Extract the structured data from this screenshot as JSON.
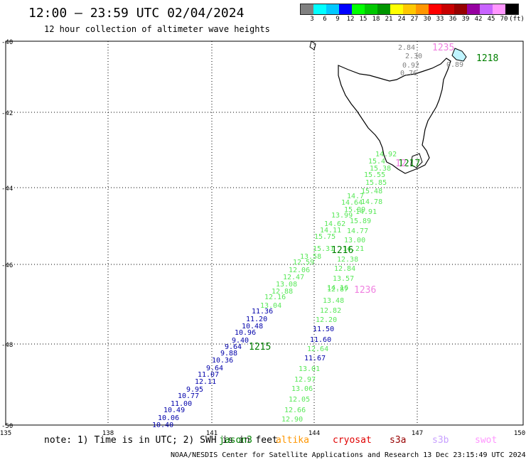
{
  "title": "12:00 – 23:59 UTC 02/04/2024",
  "subtitle": "12 hour collection of altimeter wave heights",
  "colorbar": {
    "colors": [
      "#808080",
      "#00ffff",
      "#00c8ff",
      "#0000ff",
      "#00ff00",
      "#00c800",
      "#009600",
      "#ffff00",
      "#ffc800",
      "#ff9600",
      "#ff0000",
      "#c80000",
      "#960000",
      "#9600a0",
      "#c864ff",
      "#ff96ff",
      "#000000"
    ],
    "labels": [
      "3",
      "6",
      "9",
      "12",
      "15",
      "18",
      "21",
      "24",
      "27",
      "30",
      "33",
      "36",
      "39",
      "42",
      "45",
      "70",
      "(ft)"
    ]
  },
  "axes": {
    "lat_ticks": [
      "-40",
      "-42",
      "-44",
      "-46",
      "-48",
      "-50"
    ],
    "lon_ticks": [
      "135",
      "138",
      "141",
      "144",
      "147",
      "150"
    ]
  },
  "tracks": {
    "colors": {
      "blue": "#0000aa",
      "green": "#58e858",
      "gray": "#808080",
      "pink": "#f080e0",
      "darkgreen": "#008000"
    },
    "gray_labels": [
      "2.84",
      "2.30",
      "0.92",
      "0.76",
      "0.89"
    ],
    "track_a_green": [
      "14.92",
      "15.4",
      "15.38",
      "15.55",
      "15.85",
      "15.48",
      "14.7",
      "14.78",
      "14.64",
      "15.09",
      "14.91",
      "13.99",
      "15.89",
      "14.62",
      "14.77",
      "14.11",
      "13.00",
      "15.75",
      "15.31",
      "14.21",
      "13.58",
      "12.38",
      "12.59",
      "12.84",
      "12.06",
      "13.57",
      "12.47",
      "14.16",
      "13.08",
      "12.87",
      "12.88",
      "12.16",
      "13.04"
    ],
    "track_a_blue": [
      "11.36",
      "11.20",
      "10.48",
      "10.96",
      "9.40",
      "9.64",
      "9.88",
      "10.36",
      "9.64",
      "11.07",
      "12.11",
      "9.95",
      "10.77",
      "11.00",
      "10.49",
      "10.06",
      "10.40"
    ],
    "track_b": [
      "13.48",
      "12.82",
      "12.20",
      "11.50",
      "11.60",
      "12.64",
      "11.67",
      "13.01",
      "12.97",
      "13.06",
      "12.05",
      "12.66",
      "12.90"
    ],
    "times": [
      "1235",
      "1218",
      "1217",
      "1216",
      "1236",
      "1215"
    ]
  },
  "note": "note: 1) Time is in UTC; 2) SWH is in feet",
  "legend": [
    {
      "name": "jason3",
      "color": "#008000"
    },
    {
      "name": "altika",
      "color": "#ff9600"
    },
    {
      "name": "cryosat",
      "color": "#e00000"
    },
    {
      "name": "s3a",
      "color": "#960000"
    },
    {
      "name": "s3b",
      "color": "#c8a0ff"
    },
    {
      "name": "swot",
      "color": "#ff96ff"
    }
  ],
  "footer": "NOAA/NESDIS Center for Satellite Applications and Research   13 Dec 23:15:49 UTC 2024"
}
